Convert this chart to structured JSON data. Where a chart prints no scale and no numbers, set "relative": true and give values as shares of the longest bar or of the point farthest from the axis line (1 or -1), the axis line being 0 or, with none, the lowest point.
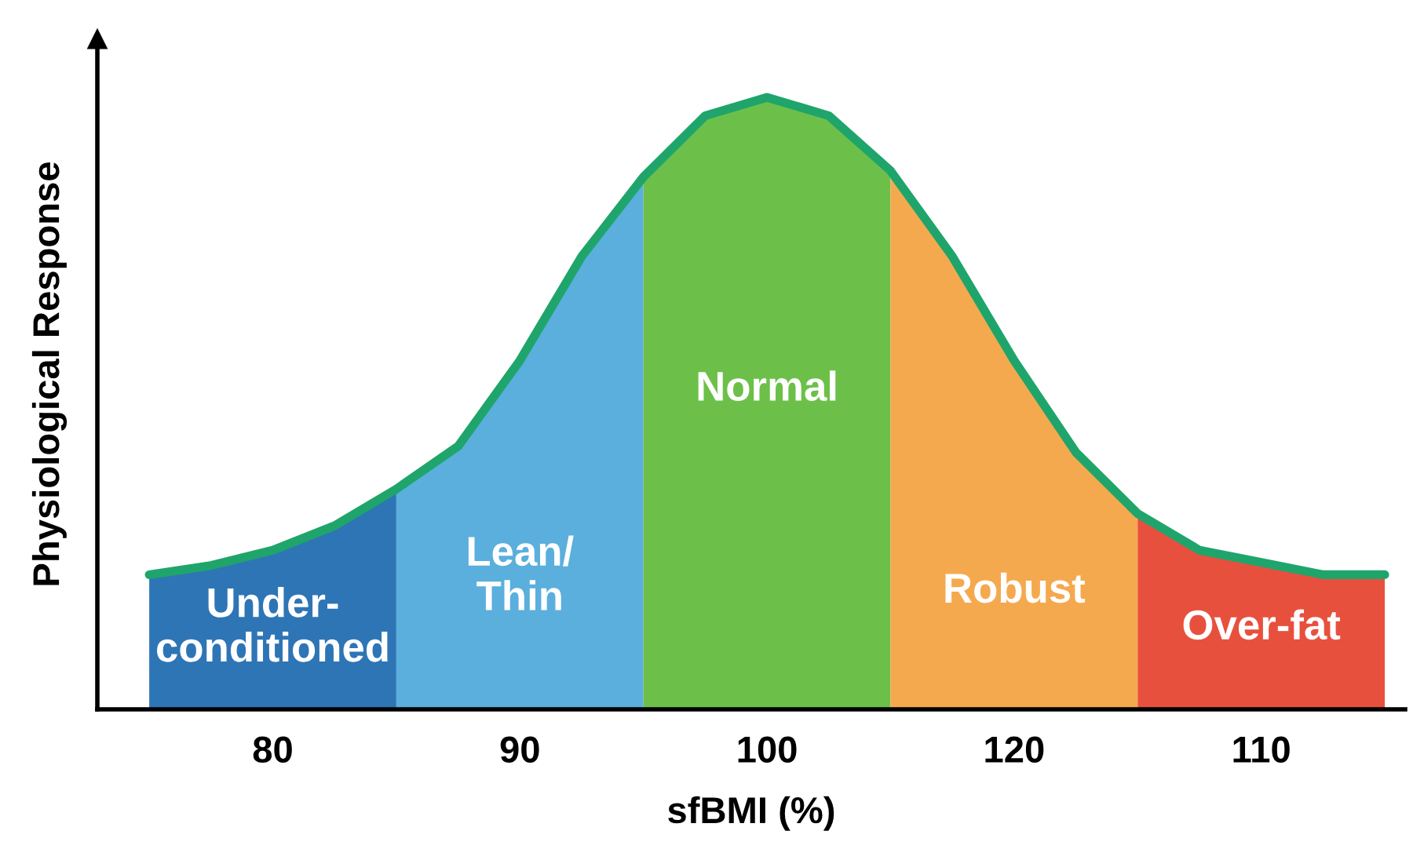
{
  "chart_data": {
    "type": "area",
    "relative": true,
    "xlabel": "sfBMI (%)",
    "ylabel": "Physiological Response",
    "categories": [
      null,
      null,
      "80",
      null,
      null,
      null,
      "90",
      null,
      null,
      null,
      "100",
      null,
      null,
      null,
      "120",
      null,
      null,
      null,
      "110",
      null,
      null
    ],
    "tick_labels": "x",
    "grid": false,
    "legend": false,
    "series": [
      {
        "name": "Under-\nconditioned",
        "color": "#2e75b6",
        "values": [
          0.22,
          0.235,
          0.26,
          0.3,
          0.36,
          null,
          null,
          null,
          null,
          null,
          null,
          null,
          null,
          null,
          null,
          null,
          null,
          null,
          null,
          null,
          null
        ]
      },
      {
        "name": "Lean/\nThin",
        "color": "#5aafdc",
        "values": [
          null,
          null,
          null,
          null,
          0.36,
          0.43,
          0.57,
          0.74,
          0.87,
          null,
          null,
          null,
          null,
          null,
          null,
          null,
          null,
          null,
          null,
          null,
          null
        ]
      },
      {
        "name": "Normal",
        "color": "#6cc04a",
        "values": [
          null,
          null,
          null,
          null,
          null,
          null,
          null,
          null,
          0.87,
          0.97,
          1.0,
          0.97,
          0.88,
          null,
          null,
          null,
          null,
          null,
          null,
          null,
          null
        ]
      },
      {
        "name": "Robust",
        "color": "#f5a94e",
        "values": [
          null,
          null,
          null,
          null,
          null,
          null,
          null,
          null,
          null,
          null,
          null,
          null,
          0.88,
          0.74,
          0.57,
          0.42,
          0.32,
          null,
          null,
          null,
          null
        ]
      },
      {
        "name": "Over-fat",
        "color": "#e8503e",
        "values": [
          null,
          null,
          null,
          null,
          null,
          null,
          null,
          null,
          null,
          null,
          null,
          null,
          null,
          null,
          null,
          null,
          0.32,
          0.26,
          0.24,
          0.22,
          0.22
        ]
      },
      {
        "type": "line",
        "color": "#1fa56b",
        "values": [
          0.22,
          0.235,
          0.26,
          0.3,
          0.36,
          0.43,
          0.57,
          0.74,
          0.87,
          0.97,
          1.0,
          0.97,
          0.88,
          0.74,
          0.57,
          0.42,
          0.32,
          0.26,
          0.24,
          0.22,
          0.22
        ]
      }
    ]
  }
}
